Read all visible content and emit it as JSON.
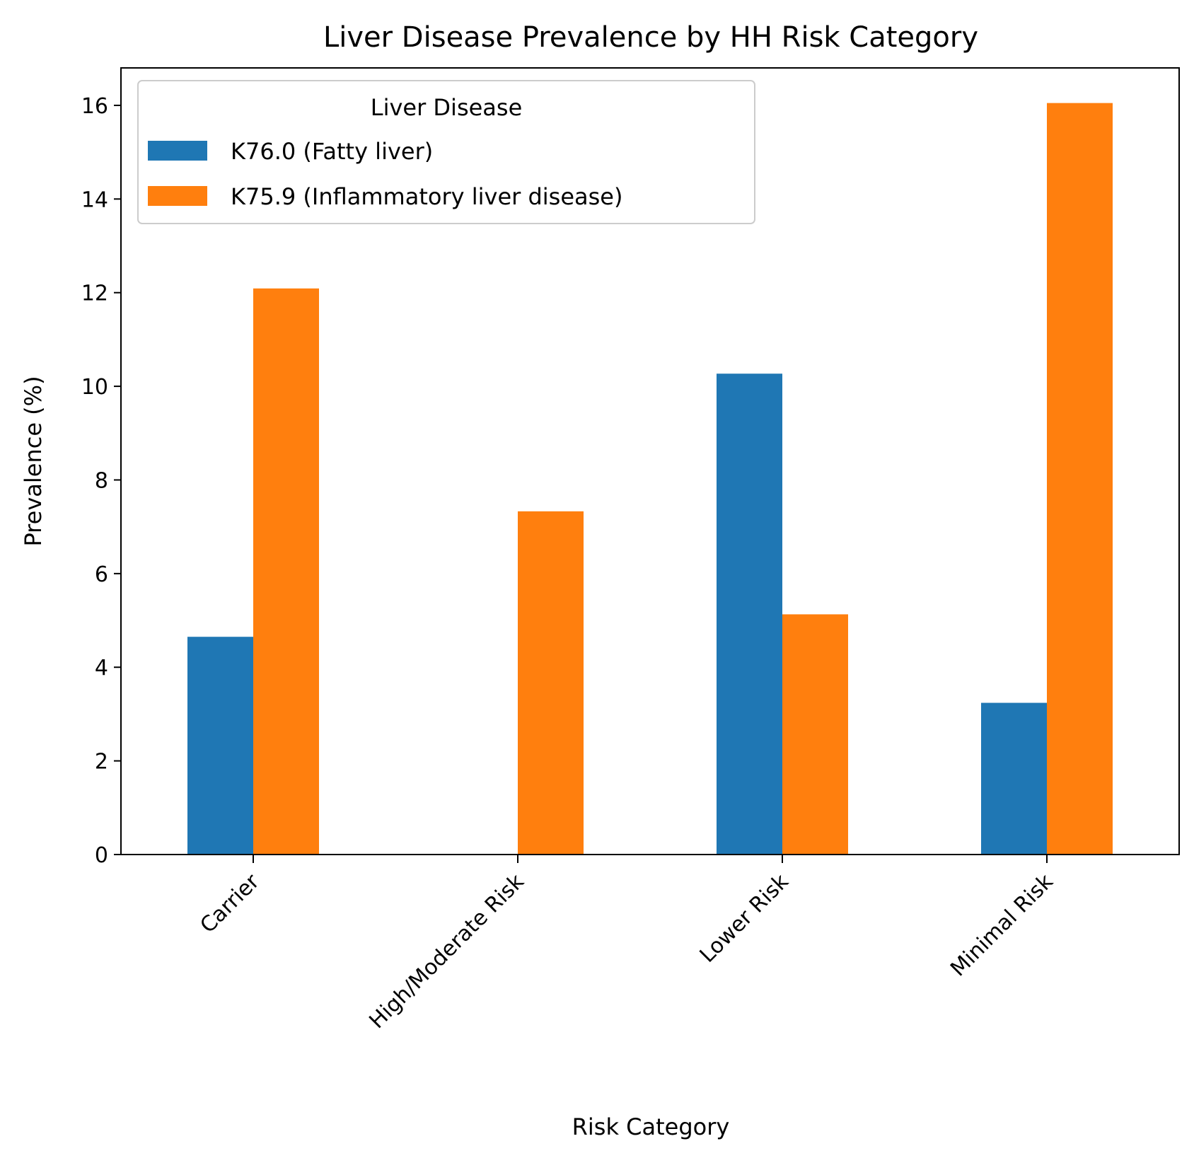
{
  "chart_data": {
    "type": "bar",
    "title": "Liver Disease Prevalence by HH Risk Category",
    "xlabel": "Risk Category",
    "ylabel": "Prevalence (%)",
    "categories": [
      "Carrier",
      "High/Moderate Risk",
      "Lower Risk",
      "Minimal Risk"
    ],
    "series": [
      {
        "name": "K76.0 (Fatty liver)",
        "color": "#1f77b4",
        "values": [
          4.65,
          0,
          10.27,
          3.24
        ]
      },
      {
        "name": "K75.9 (Inflammatory liver disease)",
        "color": "#ff7f0e",
        "values": [
          12.09,
          7.33,
          5.13,
          16.05
        ]
      }
    ],
    "legend_title": "Liver Disease",
    "legend_position": "upper-left",
    "ylim": [
      0,
      16.8
    ],
    "yticks": [
      0,
      2,
      4,
      6,
      8,
      10,
      12,
      14,
      16
    ],
    "grid": false
  }
}
